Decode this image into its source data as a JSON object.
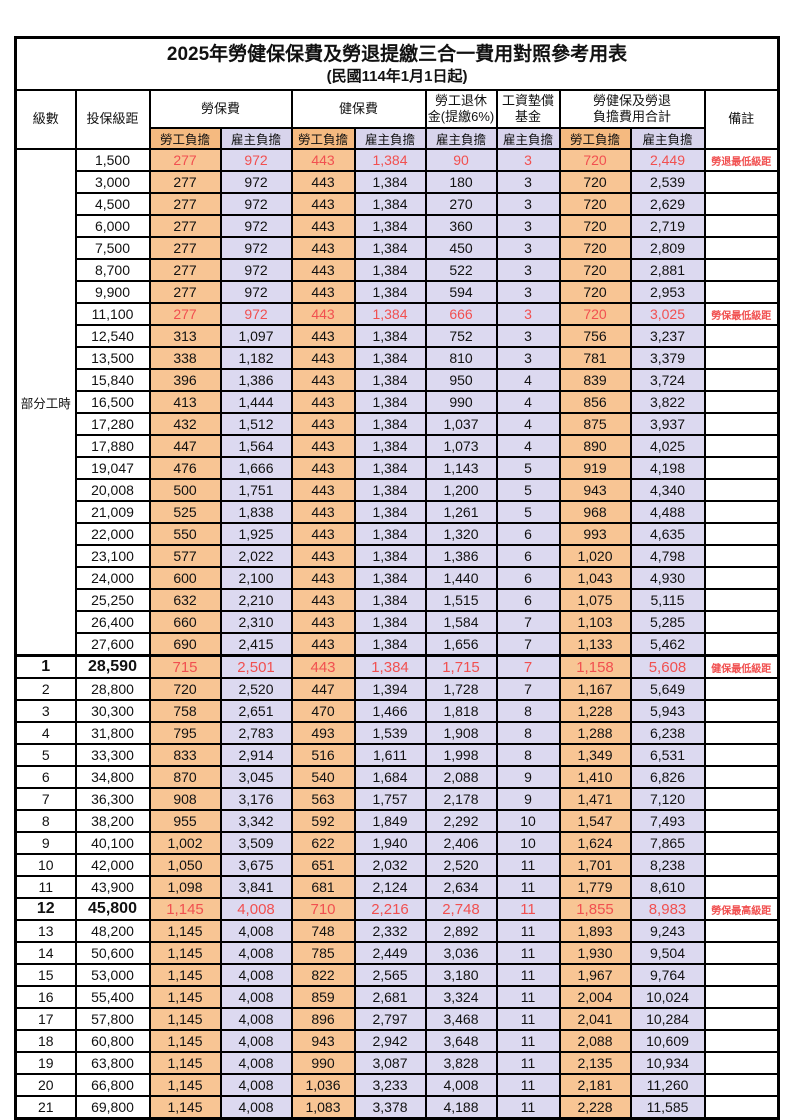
{
  "title": "2025年勞健保保費及勞退提繳三合一費用對照參考用表",
  "subtitle": "(民國114年1月1日起)",
  "header": {
    "level": "級數",
    "bracket": "投保級距",
    "labor_insurance": "勞保費",
    "health_insurance": "健保費",
    "pension_line1": "勞工退休",
    "pension_line2": "金(提繳6%)",
    "wage_fund_line1": "工資墊償",
    "wage_fund_line2": "基金",
    "total_line1": "勞健保及勞退",
    "total_line2": "負擔費用合計",
    "remark": "備註",
    "employee": "勞工負擔",
    "employer": "雇主負擔"
  },
  "part_time_label": "部分工時",
  "part_time_rowspan": 23,
  "colors": {
    "employee_col_bg": "#F8C594",
    "employer_col_bg": "#DCD9F0",
    "subheader_employee_bg": "#F5BA80",
    "subheader_employer_bg": "#D8D4EC",
    "highlight_red": "#F15050"
  },
  "value_column_names": [
    "labor-employee",
    "labor-employer",
    "health-employee",
    "health-employer",
    "pension-employer",
    "wage-fund-employer",
    "total-employee",
    "total-employer"
  ],
  "value_column_types": [
    "employee",
    "employer",
    "employee",
    "employer",
    "employer",
    "employer",
    "employee",
    "employer"
  ],
  "rows": [
    {
      "level": "",
      "bracket": "1,500",
      "values": [
        "277",
        "972",
        "443",
        "1,384",
        "90",
        "3",
        "720",
        "2,449"
      ],
      "remark": "勞退最低級距",
      "highlight": true
    },
    {
      "level": "",
      "bracket": "3,000",
      "values": [
        "277",
        "972",
        "443",
        "1,384",
        "180",
        "3",
        "720",
        "2,539"
      ],
      "remark": ""
    },
    {
      "level": "",
      "bracket": "4,500",
      "values": [
        "277",
        "972",
        "443",
        "1,384",
        "270",
        "3",
        "720",
        "2,629"
      ],
      "remark": ""
    },
    {
      "level": "",
      "bracket": "6,000",
      "values": [
        "277",
        "972",
        "443",
        "1,384",
        "360",
        "3",
        "720",
        "2,719"
      ],
      "remark": ""
    },
    {
      "level": "",
      "bracket": "7,500",
      "values": [
        "277",
        "972",
        "443",
        "1,384",
        "450",
        "3",
        "720",
        "2,809"
      ],
      "remark": ""
    },
    {
      "level": "",
      "bracket": "8,700",
      "values": [
        "277",
        "972",
        "443",
        "1,384",
        "522",
        "3",
        "720",
        "2,881"
      ],
      "remark": ""
    },
    {
      "level": "",
      "bracket": "9,900",
      "values": [
        "277",
        "972",
        "443",
        "1,384",
        "594",
        "3",
        "720",
        "2,953"
      ],
      "remark": ""
    },
    {
      "level": "",
      "bracket": "11,100",
      "values": [
        "277",
        "972",
        "443",
        "1,384",
        "666",
        "3",
        "720",
        "3,025"
      ],
      "remark": "勞保最低級距",
      "highlight": true
    },
    {
      "level": "",
      "bracket": "12,540",
      "values": [
        "313",
        "1,097",
        "443",
        "1,384",
        "752",
        "3",
        "756",
        "3,237"
      ],
      "remark": ""
    },
    {
      "level": "",
      "bracket": "13,500",
      "values": [
        "338",
        "1,182",
        "443",
        "1,384",
        "810",
        "3",
        "781",
        "3,379"
      ],
      "remark": ""
    },
    {
      "level": "",
      "bracket": "15,840",
      "values": [
        "396",
        "1,386",
        "443",
        "1,384",
        "950",
        "4",
        "839",
        "3,724"
      ],
      "remark": ""
    },
    {
      "level": "",
      "bracket": "16,500",
      "values": [
        "413",
        "1,444",
        "443",
        "1,384",
        "990",
        "4",
        "856",
        "3,822"
      ],
      "remark": ""
    },
    {
      "level": "",
      "bracket": "17,280",
      "values": [
        "432",
        "1,512",
        "443",
        "1,384",
        "1,037",
        "4",
        "875",
        "3,937"
      ],
      "remark": ""
    },
    {
      "level": "",
      "bracket": "17,880",
      "values": [
        "447",
        "1,564",
        "443",
        "1,384",
        "1,073",
        "4",
        "890",
        "4,025"
      ],
      "remark": ""
    },
    {
      "level": "",
      "bracket": "19,047",
      "values": [
        "476",
        "1,666",
        "443",
        "1,384",
        "1,143",
        "5",
        "919",
        "4,198"
      ],
      "remark": ""
    },
    {
      "level": "",
      "bracket": "20,008",
      "values": [
        "500",
        "1,751",
        "443",
        "1,384",
        "1,200",
        "5",
        "943",
        "4,340"
      ],
      "remark": ""
    },
    {
      "level": "",
      "bracket": "21,009",
      "values": [
        "525",
        "1,838",
        "443",
        "1,384",
        "1,261",
        "5",
        "968",
        "4,488"
      ],
      "remark": ""
    },
    {
      "level": "",
      "bracket": "22,000",
      "values": [
        "550",
        "1,925",
        "443",
        "1,384",
        "1,320",
        "6",
        "993",
        "4,635"
      ],
      "remark": ""
    },
    {
      "level": "",
      "bracket": "23,100",
      "values": [
        "577",
        "2,022",
        "443",
        "1,384",
        "1,386",
        "6",
        "1,020",
        "4,798"
      ],
      "remark": ""
    },
    {
      "level": "",
      "bracket": "24,000",
      "values": [
        "600",
        "2,100",
        "443",
        "1,384",
        "1,440",
        "6",
        "1,043",
        "4,930"
      ],
      "remark": ""
    },
    {
      "level": "",
      "bracket": "25,250",
      "values": [
        "632",
        "2,210",
        "443",
        "1,384",
        "1,515",
        "6",
        "1,075",
        "5,115"
      ],
      "remark": ""
    },
    {
      "level": "",
      "bracket": "26,400",
      "values": [
        "660",
        "2,310",
        "443",
        "1,384",
        "1,584",
        "7",
        "1,103",
        "5,285"
      ],
      "remark": ""
    },
    {
      "level": "",
      "bracket": "27,600",
      "values": [
        "690",
        "2,415",
        "443",
        "1,384",
        "1,656",
        "7",
        "1,133",
        "5,462"
      ],
      "remark": ""
    },
    {
      "level": "1",
      "bracket": "28,590",
      "values": [
        "715",
        "2,501",
        "443",
        "1,384",
        "1,715",
        "7",
        "1,158",
        "5,608"
      ],
      "remark": "健保最低級距",
      "highlight": true,
      "emphasis": true,
      "thick_top": true
    },
    {
      "level": "2",
      "bracket": "28,800",
      "values": [
        "720",
        "2,520",
        "447",
        "1,394",
        "1,728",
        "7",
        "1,167",
        "5,649"
      ],
      "remark": ""
    },
    {
      "level": "3",
      "bracket": "30,300",
      "values": [
        "758",
        "2,651",
        "470",
        "1,466",
        "1,818",
        "8",
        "1,228",
        "5,943"
      ],
      "remark": ""
    },
    {
      "level": "4",
      "bracket": "31,800",
      "values": [
        "795",
        "2,783",
        "493",
        "1,539",
        "1,908",
        "8",
        "1,288",
        "6,238"
      ],
      "remark": ""
    },
    {
      "level": "5",
      "bracket": "33,300",
      "values": [
        "833",
        "2,914",
        "516",
        "1,611",
        "1,998",
        "8",
        "1,349",
        "6,531"
      ],
      "remark": ""
    },
    {
      "level": "6",
      "bracket": "34,800",
      "values": [
        "870",
        "3,045",
        "540",
        "1,684",
        "2,088",
        "9",
        "1,410",
        "6,826"
      ],
      "remark": ""
    },
    {
      "level": "7",
      "bracket": "36,300",
      "values": [
        "908",
        "3,176",
        "563",
        "1,757",
        "2,178",
        "9",
        "1,471",
        "7,120"
      ],
      "remark": ""
    },
    {
      "level": "8",
      "bracket": "38,200",
      "values": [
        "955",
        "3,342",
        "592",
        "1,849",
        "2,292",
        "10",
        "1,547",
        "7,493"
      ],
      "remark": ""
    },
    {
      "level": "9",
      "bracket": "40,100",
      "values": [
        "1,002",
        "3,509",
        "622",
        "1,940",
        "2,406",
        "10",
        "1,624",
        "7,865"
      ],
      "remark": ""
    },
    {
      "level": "10",
      "bracket": "42,000",
      "values": [
        "1,050",
        "3,675",
        "651",
        "2,032",
        "2,520",
        "11",
        "1,701",
        "8,238"
      ],
      "remark": ""
    },
    {
      "level": "11",
      "bracket": "43,900",
      "values": [
        "1,098",
        "3,841",
        "681",
        "2,124",
        "2,634",
        "11",
        "1,779",
        "8,610"
      ],
      "remark": ""
    },
    {
      "level": "12",
      "bracket": "45,800",
      "values": [
        "1,145",
        "4,008",
        "710",
        "2,216",
        "2,748",
        "11",
        "1,855",
        "8,983"
      ],
      "remark": "勞保最高級距",
      "highlight": true,
      "emphasis": true
    },
    {
      "level": "13",
      "bracket": "48,200",
      "values": [
        "1,145",
        "4,008",
        "748",
        "2,332",
        "2,892",
        "11",
        "1,893",
        "9,243"
      ],
      "remark": ""
    },
    {
      "level": "14",
      "bracket": "50,600",
      "values": [
        "1,145",
        "4,008",
        "785",
        "2,449",
        "3,036",
        "11",
        "1,930",
        "9,504"
      ],
      "remark": ""
    },
    {
      "level": "15",
      "bracket": "53,000",
      "values": [
        "1,145",
        "4,008",
        "822",
        "2,565",
        "3,180",
        "11",
        "1,967",
        "9,764"
      ],
      "remark": ""
    },
    {
      "level": "16",
      "bracket": "55,400",
      "values": [
        "1,145",
        "4,008",
        "859",
        "2,681",
        "3,324",
        "11",
        "2,004",
        "10,024"
      ],
      "remark": ""
    },
    {
      "level": "17",
      "bracket": "57,800",
      "values": [
        "1,145",
        "4,008",
        "896",
        "2,797",
        "3,468",
        "11",
        "2,041",
        "10,284"
      ],
      "remark": ""
    },
    {
      "level": "18",
      "bracket": "60,800",
      "values": [
        "1,145",
        "4,008",
        "943",
        "2,942",
        "3,648",
        "11",
        "2,088",
        "10,609"
      ],
      "remark": ""
    },
    {
      "level": "19",
      "bracket": "63,800",
      "values": [
        "1,145",
        "4,008",
        "990",
        "3,087",
        "3,828",
        "11",
        "2,135",
        "10,934"
      ],
      "remark": ""
    },
    {
      "level": "20",
      "bracket": "66,800",
      "values": [
        "1,145",
        "4,008",
        "1,036",
        "3,233",
        "4,008",
        "11",
        "2,181",
        "11,260"
      ],
      "remark": ""
    },
    {
      "level": "21",
      "bracket": "69,800",
      "values": [
        "1,145",
        "4,008",
        "1,083",
        "3,378",
        "4,188",
        "11",
        "2,228",
        "11,585"
      ],
      "remark": ""
    }
  ]
}
